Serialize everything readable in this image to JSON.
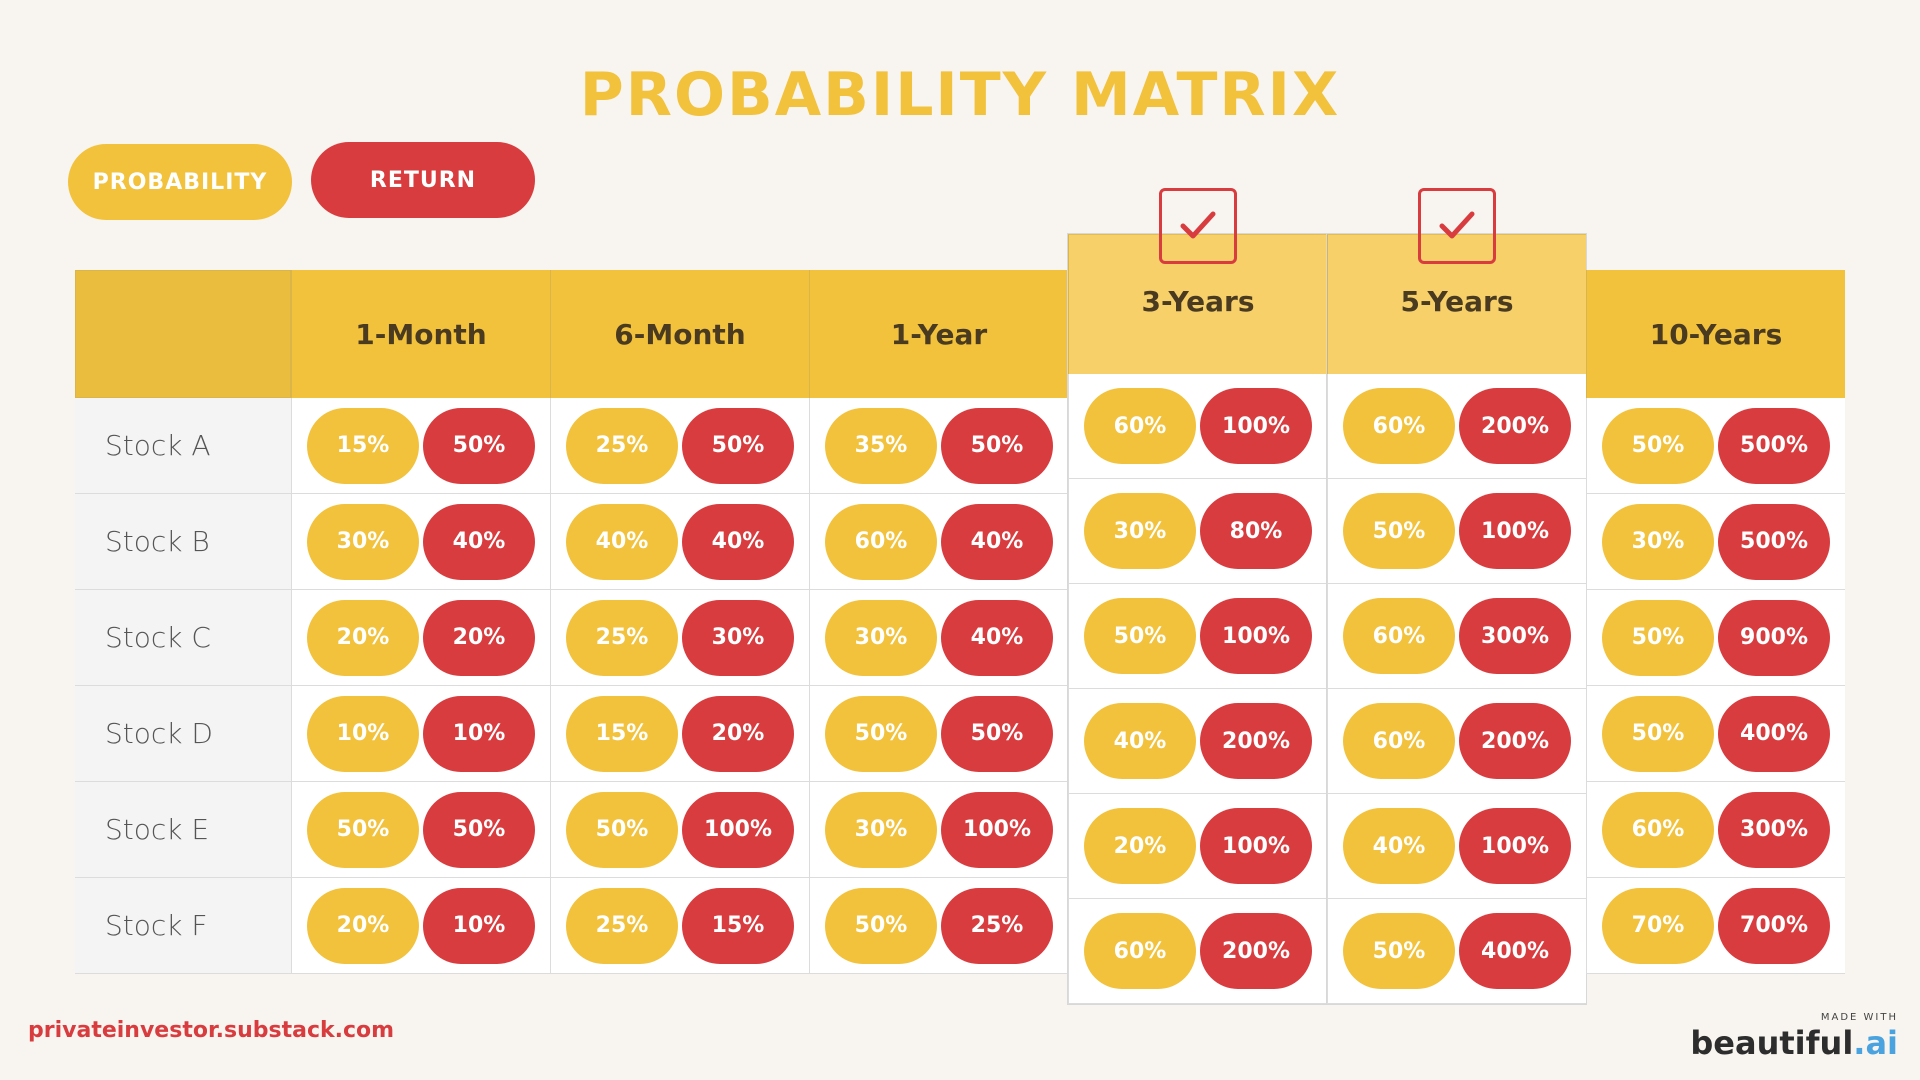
{
  "title": "PROBABILITY MATRIX",
  "legend": {
    "probability": "PROBABILITY",
    "return": "RETURN"
  },
  "columns": [
    "1-Month",
    "6-Month",
    "1-Year",
    "3-Years",
    "5-Years",
    "10-Years"
  ],
  "highlighted_columns": [
    "3-Years",
    "5-Years"
  ],
  "rows": [
    {
      "label": "Stock A",
      "cells": [
        [
          "15%",
          "50%"
        ],
        [
          "25%",
          "50%"
        ],
        [
          "35%",
          "50%"
        ],
        [
          "60%",
          "100%"
        ],
        [
          "60%",
          "200%"
        ],
        [
          "50%",
          "500%"
        ]
      ]
    },
    {
      "label": "Stock B",
      "cells": [
        [
          "30%",
          "40%"
        ],
        [
          "40%",
          "40%"
        ],
        [
          "60%",
          "40%"
        ],
        [
          "30%",
          "80%"
        ],
        [
          "50%",
          "100%"
        ],
        [
          "30%",
          "500%"
        ]
      ]
    },
    {
      "label": "Stock C",
      "cells": [
        [
          "20%",
          "20%"
        ],
        [
          "25%",
          "30%"
        ],
        [
          "30%",
          "40%"
        ],
        [
          "50%",
          "100%"
        ],
        [
          "60%",
          "300%"
        ],
        [
          "50%",
          "900%"
        ]
      ]
    },
    {
      "label": "Stock D",
      "cells": [
        [
          "10%",
          "10%"
        ],
        [
          "15%",
          "20%"
        ],
        [
          "50%",
          "50%"
        ],
        [
          "40%",
          "200%"
        ],
        [
          "60%",
          "200%"
        ],
        [
          "50%",
          "400%"
        ]
      ]
    },
    {
      "label": "Stock E",
      "cells": [
        [
          "50%",
          "50%"
        ],
        [
          "50%",
          "100%"
        ],
        [
          "30%",
          "100%"
        ],
        [
          "20%",
          "100%"
        ],
        [
          "40%",
          "100%"
        ],
        [
          "60%",
          "300%"
        ]
      ]
    },
    {
      "label": "Stock F",
      "cells": [
        [
          "20%",
          "10%"
        ],
        [
          "25%",
          "15%"
        ],
        [
          "50%",
          "25%"
        ],
        [
          "60%",
          "200%"
        ],
        [
          "50%",
          "400%"
        ],
        [
          "70%",
          "700%"
        ]
      ]
    }
  ],
  "colors": {
    "probability": "#f2c23d",
    "return": "#d83c3f",
    "header": "#f2c23d",
    "raised_header": "#f7d06a"
  },
  "footer": {
    "source": "privateinvestor.substack.com",
    "made_with": "MADE WITH",
    "brand": "beautiful",
    "brand_suffix": ".ai"
  }
}
